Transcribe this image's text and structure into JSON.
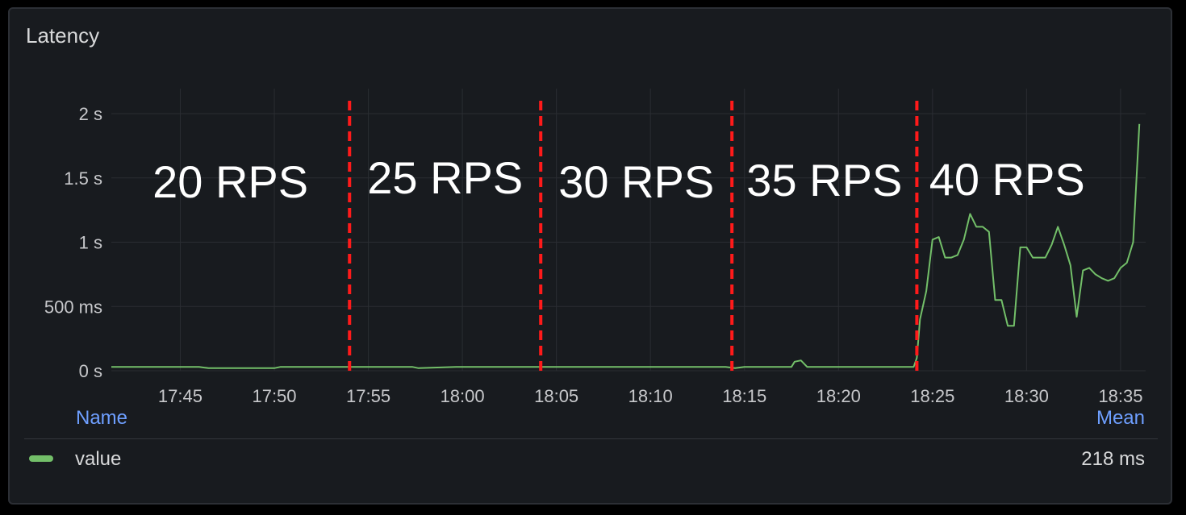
{
  "panel": {
    "title": "Latency"
  },
  "chart_data": {
    "type": "line",
    "ylabel": "",
    "xlabel": "",
    "ylim": [
      0,
      2
    ],
    "y_ticks": [
      "0 s",
      "500 ms",
      "1 s",
      "1.5 s",
      "2 s"
    ],
    "y_tick_values": [
      0,
      0.5,
      1,
      1.5,
      2
    ],
    "xlim": [
      "17:41:20",
      "18:36:20"
    ],
    "x_ticks": [
      "17:45",
      "17:50",
      "17:55",
      "18:00",
      "18:05",
      "18:10",
      "18:15",
      "18:20",
      "18:25",
      "18:30",
      "18:35"
    ],
    "grid": true,
    "series": [
      {
        "name": "value",
        "color": "#73bf69",
        "x": [
          "17:41:20",
          "17:46:00",
          "17:46:30",
          "17:50:00",
          "17:50:20",
          "17:54:00",
          "17:54:40",
          "17:57:20",
          "17:57:40",
          "17:59:40",
          "18:00:00",
          "18:05:00",
          "18:10:00",
          "18:14:00",
          "18:14:30",
          "18:15:00",
          "18:17:30",
          "18:17:40",
          "18:18:00",
          "18:18:20",
          "18:20:00",
          "18:24:00",
          "18:24:10",
          "18:24:20",
          "18:24:40",
          "18:25:00",
          "18:25:20",
          "18:25:40",
          "18:26:00",
          "18:26:20",
          "18:26:40",
          "18:27:00",
          "18:27:20",
          "18:27:40",
          "18:28:00",
          "18:28:20",
          "18:28:40",
          "18:29:00",
          "18:29:20",
          "18:29:40",
          "18:30:00",
          "18:30:20",
          "18:30:40",
          "18:31:00",
          "18:31:20",
          "18:31:40",
          "18:32:00",
          "18:32:20",
          "18:32:40",
          "18:33:00",
          "18:33:20",
          "18:33:40",
          "18:34:00",
          "18:34:20",
          "18:34:40",
          "18:35:00",
          "18:35:20",
          "18:35:40",
          "18:36:00"
        ],
        "y": [
          0.03,
          0.03,
          0.02,
          0.02,
          0.03,
          0.03,
          0.03,
          0.03,
          0.02,
          0.03,
          0.03,
          0.03,
          0.03,
          0.03,
          0.02,
          0.03,
          0.03,
          0.07,
          0.08,
          0.03,
          0.03,
          0.03,
          0.1,
          0.4,
          0.62,
          1.02,
          1.04,
          0.88,
          0.88,
          0.9,
          1.02,
          1.22,
          1.12,
          1.12,
          1.08,
          0.55,
          0.55,
          0.35,
          0.35,
          0.96,
          0.96,
          0.88,
          0.88,
          0.88,
          0.98,
          1.12,
          0.98,
          0.82,
          0.42,
          0.78,
          0.8,
          0.75,
          0.72,
          0.7,
          0.72,
          0.8,
          0.84,
          1.0,
          1.92
        ]
      }
    ],
    "annotations": [
      {
        "at": "17:54:00",
        "label": "20 RPS",
        "label_side": "before"
      },
      {
        "at": "18:04:10",
        "label": "25 RPS",
        "label_side": "before"
      },
      {
        "at": "18:14:20",
        "label": "30 RPS",
        "label_side": "before"
      },
      {
        "at": "18:24:10",
        "label": "35 RPS",
        "label_side": "before"
      },
      {
        "at": "18:24:10",
        "label": "40 RPS",
        "label_side": "after"
      }
    ],
    "annotation_color": "#ff1a1a"
  },
  "legend": {
    "name_header": "Name",
    "mean_header": "Mean",
    "rows": [
      {
        "name": "value",
        "mean": "218 ms",
        "color": "#73bf69"
      }
    ]
  }
}
